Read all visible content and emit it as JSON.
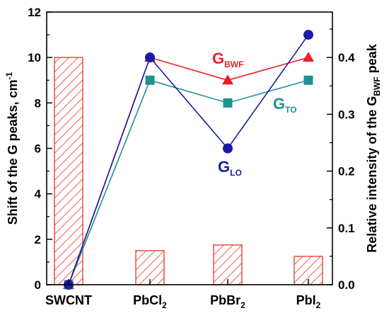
{
  "chart_data": {
    "type": "bar+line",
    "categories": [
      "SWCNT",
      "PbCl",
      "PbBr",
      "PbI"
    ],
    "category_subscripts": [
      "",
      "2",
      "2",
      "2"
    ],
    "left_axis": {
      "label_main": "Shift of the G peaks, cm",
      "label_sup": "-1",
      "ylim": [
        0,
        12
      ],
      "ticks": [
        0,
        2,
        4,
        6,
        8,
        10,
        12
      ]
    },
    "right_axis": {
      "label_main": "Relative intensity of the G",
      "label_sub": "BWF",
      "label_tail": " peak",
      "ylim": [
        0,
        0.48
      ],
      "ticks": [
        "0.0",
        "0.1",
        "0.2",
        "0.3",
        "0.4"
      ]
    },
    "bars": {
      "axis": "right",
      "values": [
        0.4,
        0.06,
        0.07,
        0.05
      ],
      "color": "#e8322a",
      "pattern": "diagonal-hatch"
    },
    "series": [
      {
        "label_main": "G",
        "label_sub": "BWF",
        "axis": "left",
        "marker": "triangle",
        "color": "#ee1c24",
        "values": [
          0,
          10,
          9,
          10
        ]
      },
      {
        "label_main": "G",
        "label_sub": "TO",
        "axis": "left",
        "marker": "square",
        "color": "#1f9191",
        "values": [
          0,
          9,
          8,
          9
        ]
      },
      {
        "label_main": "G",
        "label_sub": "LO",
        "axis": "left",
        "marker": "circle",
        "color": "#1a1aa6",
        "values": [
          0,
          10,
          6,
          11
        ]
      }
    ],
    "grid": false
  }
}
